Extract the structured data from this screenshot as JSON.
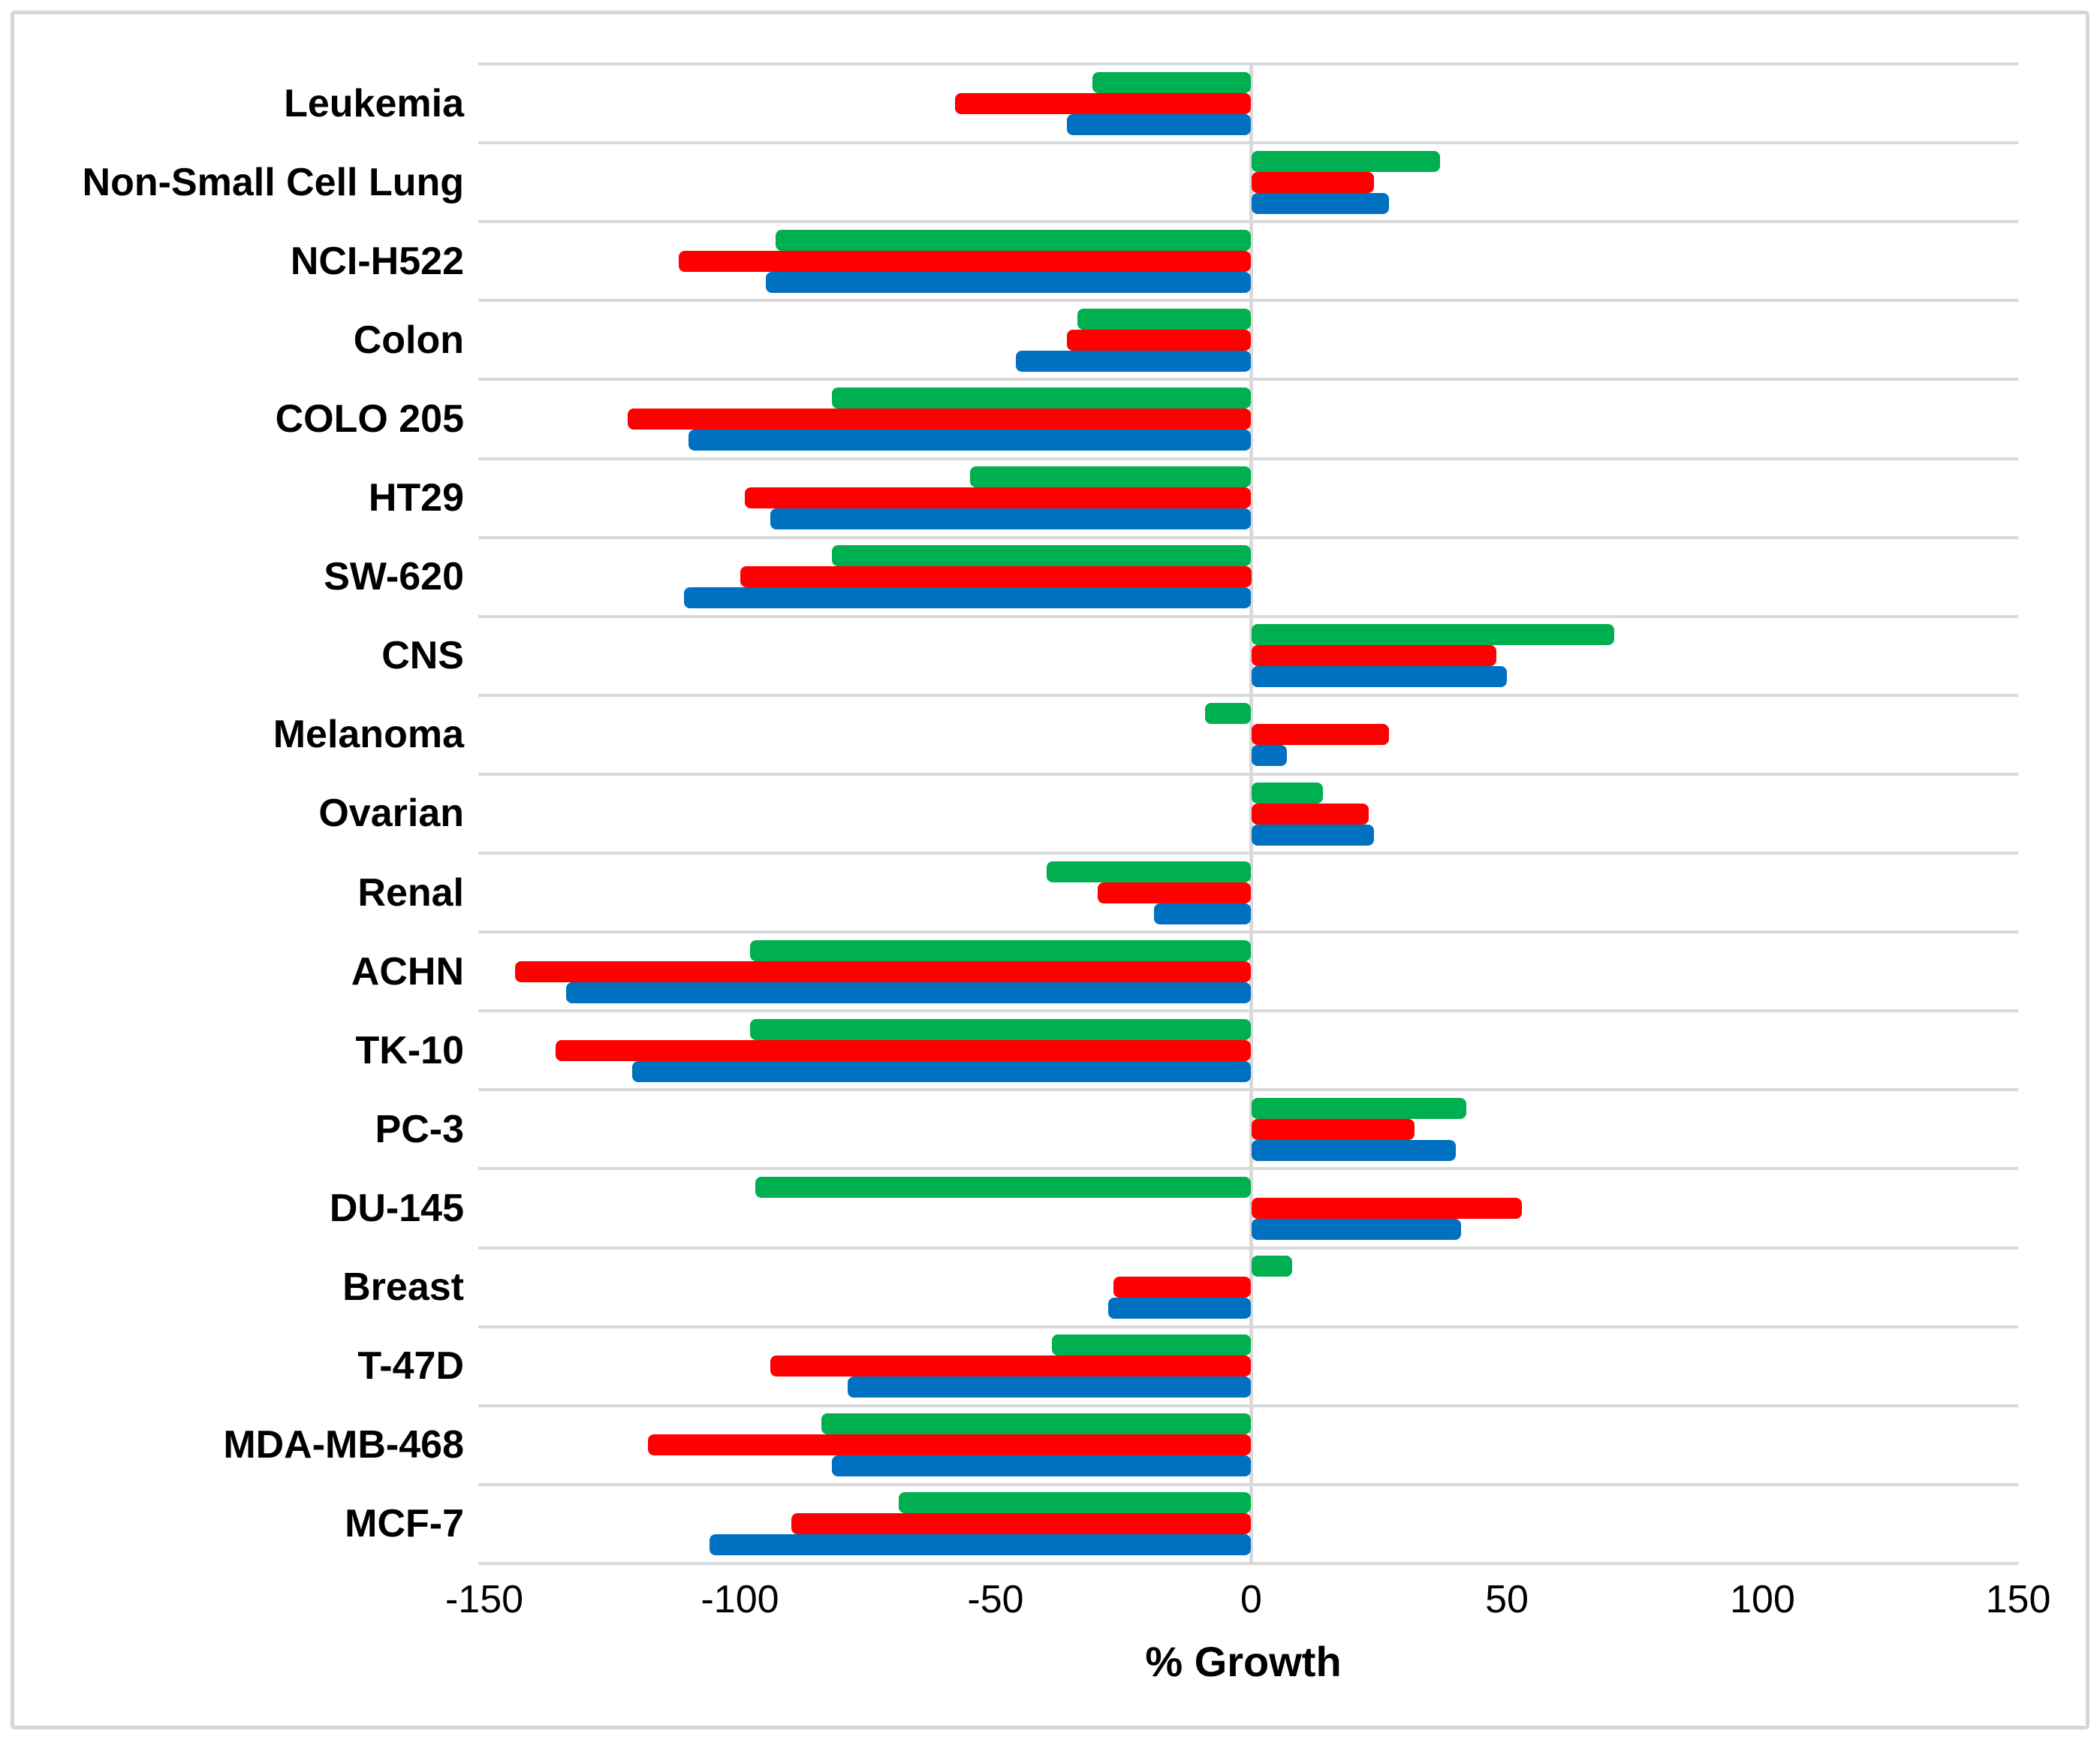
{
  "axis": {
    "x_title": "% Growth"
  },
  "chart_data": {
    "type": "bar",
    "orientation": "horizontal",
    "title": "",
    "xlabel": "% Growth",
    "ylabel": "",
    "xlim": [
      -150,
      150
    ],
    "xticks": [
      -150,
      -100,
      -50,
      0,
      50,
      100,
      150
    ],
    "grid": {
      "horizontal_gridlines": true,
      "vertical_gridlines": false,
      "zero_line": true,
      "gridline_color": "#d9d9d9"
    },
    "legend": "none",
    "categories": [
      "Leukemia",
      "Non-Small Cell Lung",
      "NCI-H522",
      "Colon",
      "COLO 205",
      "HT29",
      "SW-620",
      "CNS",
      "Melanoma",
      "Ovarian",
      "Renal",
      "ACHN",
      "TK-10",
      "PC-3",
      "DU-145",
      "Breast",
      "T-47D",
      "MDA-MB-468",
      "MCF-7"
    ],
    "series": [
      {
        "name": "series-green",
        "color": "#00B050",
        "values": [
          -31,
          37,
          -93,
          -34,
          -82,
          -55,
          -82,
          71,
          -9,
          14,
          -40,
          -98,
          -98,
          42,
          -97,
          8,
          -39,
          -84,
          -69
        ]
      },
      {
        "name": "series-red",
        "color": "#FF0000",
        "values": [
          -58,
          24,
          -112,
          -36,
          -122,
          -99,
          -100,
          48,
          27,
          23,
          -30,
          -144,
          -136,
          32,
          53,
          -27,
          -94,
          -118,
          -90
        ]
      },
      {
        "name": "series-blue",
        "color": "#0070C0",
        "values": [
          -36,
          27,
          -95,
          -46,
          -110,
          -94,
          -111,
          50,
          7,
          24,
          -19,
          -134,
          -121,
          40,
          41,
          -28,
          -79,
          -82,
          -106
        ]
      }
    ]
  }
}
